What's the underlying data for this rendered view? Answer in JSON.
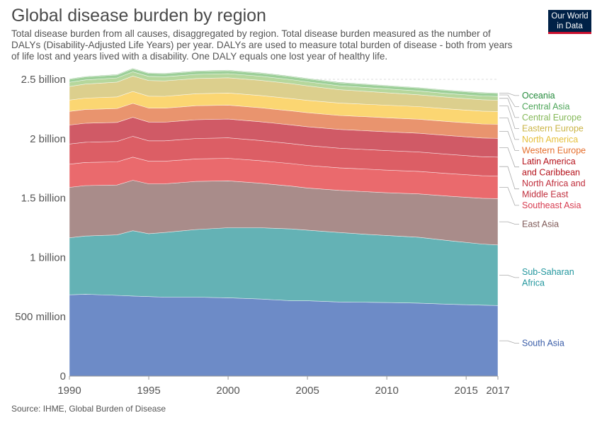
{
  "header": {
    "title": "Global disease burden by region",
    "subtitle": "Total disease burden from all causes, disaggregated by region. Total disease burden measured as the number of DALYs (Disability-Adjusted Life Years) per year. DALYs are used to measure total burden of disease - both from years of life lost and years lived with a disability. One DALY equals one lost year of healthy life.",
    "logo_line1": "Our World",
    "logo_line2": "in Data"
  },
  "footer": {
    "source": "Source: IHME, Global Burden of Disease"
  },
  "chart_data": {
    "type": "area",
    "stacked": true,
    "x": [
      1990,
      1991,
      1993,
      1994,
      1995,
      1996,
      1998,
      2000,
      2002,
      2004,
      2005,
      2007,
      2009,
      2010,
      2012,
      2014,
      2016,
      2017
    ],
    "xticks": [
      1990,
      1995,
      2000,
      2005,
      2010,
      2015,
      2017
    ],
    "yticks": [
      {
        "value": 0,
        "label": "0"
      },
      {
        "value": 500000000,
        "label": "500 million"
      },
      {
        "value": 1000000000,
        "label": "1 billion"
      },
      {
        "value": 1500000000,
        "label": "1.5 billion"
      },
      {
        "value": 2000000000,
        "label": "2 billion"
      },
      {
        "value": 2500000000,
        "label": "2.5 billion"
      }
    ],
    "ylim": [
      0,
      2500000000
    ],
    "grid": true,
    "legend_position": "right",
    "series": [
      {
        "name": "South Asia",
        "color": "#6d8bc7",
        "label_color": "#3a5da8",
        "values": [
          685000000,
          690000000,
          680000000,
          675000000,
          670000000,
          665000000,
          665000000,
          660000000,
          650000000,
          635000000,
          635000000,
          625000000,
          622000000,
          620000000,
          615000000,
          605000000,
          598000000,
          595000000
        ]
      },
      {
        "name": "Sub-Saharan Africa",
        "label_lines": [
          "Sub-Saharan",
          "Africa"
        ],
        "color": "#64b2b5",
        "label_color": "#23979e",
        "values": [
          480000000,
          490000000,
          510000000,
          550000000,
          530000000,
          545000000,
          570000000,
          590000000,
          600000000,
          605000000,
          595000000,
          585000000,
          570000000,
          565000000,
          555000000,
          535000000,
          515000000,
          510000000
        ]
      },
      {
        "name": "East Asia",
        "color": "#a98c8a",
        "label_color": "#7f5a58",
        "values": [
          425000000,
          425000000,
          420000000,
          425000000,
          420000000,
          410000000,
          405000000,
          395000000,
          375000000,
          360000000,
          355000000,
          355000000,
          360000000,
          360000000,
          365000000,
          375000000,
          385000000,
          390000000
        ]
      },
      {
        "name": "Southeast Asia",
        "color": "#ea6a6d",
        "label_color": "#d73c50",
        "values": [
          195000000,
          195000000,
          195000000,
          195000000,
          190000000,
          190000000,
          190000000,
          190000000,
          190000000,
          190000000,
          190000000,
          190000000,
          190000000,
          190000000,
          190000000,
          190000000,
          190000000,
          190000000
        ]
      },
      {
        "name": "North Africa and Middle East",
        "label_lines": [
          "North Africa and",
          "Middle East"
        ],
        "color": "#dc5e65",
        "label_color": "#c02e3c",
        "values": [
          170000000,
          170000000,
          172000000,
          175000000,
          172000000,
          172000000,
          172000000,
          172000000,
          170000000,
          168000000,
          168000000,
          165000000,
          165000000,
          165000000,
          163000000,
          162000000,
          160000000,
          160000000
        ]
      },
      {
        "name": "Latin America and Caribbean",
        "label_lines": [
          "Latin America",
          "and Caribbean"
        ],
        "color": "#d05a66",
        "label_color": "#b5121b",
        "values": [
          160000000,
          160000000,
          160000000,
          160000000,
          158000000,
          157000000,
          158000000,
          158000000,
          158000000,
          158000000,
          158000000,
          158000000,
          158000000,
          158000000,
          158000000,
          158000000,
          158000000,
          158000000
        ]
      },
      {
        "name": "Western Europe",
        "color": "#e9946e",
        "label_color": "#e56e2c",
        "values": [
          115000000,
          116000000,
          117000000,
          118000000,
          118000000,
          118000000,
          118000000,
          118000000,
          118000000,
          118000000,
          118000000,
          118000000,
          118000000,
          118000000,
          118000000,
          118000000,
          118000000,
          118000000
        ]
      },
      {
        "name": "North America",
        "color": "#fbd672",
        "label_color": "#e6c03c",
        "values": [
          95000000,
          96000000,
          98000000,
          100000000,
          100000000,
          100000000,
          101000000,
          102000000,
          103000000,
          104000000,
          104000000,
          105000000,
          105000000,
          106000000,
          106000000,
          107000000,
          108000000,
          108000000
        ]
      },
      {
        "name": "Eastern Europe",
        "color": "#dccf8d",
        "label_color": "#cbb548",
        "values": [
          115000000,
          118000000,
          125000000,
          130000000,
          132000000,
          130000000,
          128000000,
          128000000,
          128000000,
          125000000,
          122000000,
          112000000,
          108000000,
          105000000,
          100000000,
          97000000,
          96000000,
          95000000
        ]
      },
      {
        "name": "Central Europe",
        "color": "#b6d79c",
        "label_color": "#86b95a",
        "values": [
          35000000,
          35000000,
          35000000,
          35000000,
          35000000,
          35000000,
          35000000,
          35000000,
          35000000,
          34000000,
          34000000,
          33000000,
          33000000,
          33000000,
          32000000,
          32000000,
          32000000,
          32000000
        ]
      },
      {
        "name": "Central Asia",
        "color": "#9ccf98",
        "label_color": "#4fa65a",
        "values": [
          25000000,
          25000000,
          25000000,
          25000000,
          25000000,
          25000000,
          25000000,
          25000000,
          25000000,
          25000000,
          25000000,
          25000000,
          25000000,
          25000000,
          25000000,
          25000000,
          25000000,
          25000000
        ]
      },
      {
        "name": "Oceania",
        "color": "#74b270",
        "label_color": "#238a3a",
        "values": [
          5000000,
          5000000,
          5000000,
          5000000,
          5000000,
          5000000,
          5000000,
          5000000,
          5000000,
          5000000,
          5000000,
          5000000,
          5000000,
          5000000,
          5000000,
          5000000,
          5000000,
          5000000
        ]
      }
    ]
  }
}
